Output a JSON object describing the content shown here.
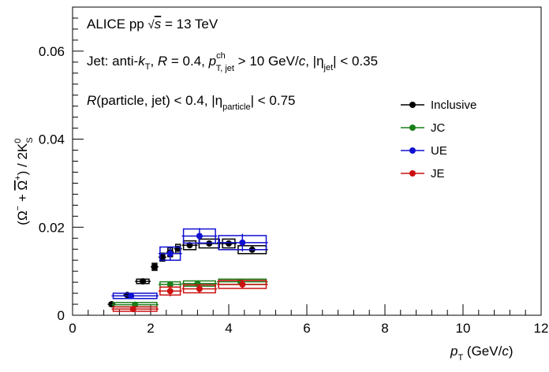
{
  "chart_data": {
    "type": "scatter",
    "ylabel": "(Ω⁻ + Ω̄⁺) / 2K⁰S",
    "xlabel": "pT (GeV/c)",
    "xlim": [
      0,
      12
    ],
    "ylim": [
      0,
      0.07
    ],
    "grid": false,
    "legend_position": "right",
    "x_tick_labels": [
      "0",
      "2",
      "4",
      "6",
      "8",
      "10",
      "12"
    ],
    "y_tick_labels": [
      "0",
      "0.02",
      "0.04",
      "0.06"
    ],
    "annotations": {
      "line1": "ALICE pp √s = 13 TeV",
      "line2": "Jet: anti-kT, R = 0.4, pch T, jet > 10 GeV/c, |ηjet| < 0.35",
      "line3": "R(particle, jet) < 0.4, |ηparticle| < 0.75"
    },
    "series": [
      {
        "name": "Inclusive",
        "color": "#000000",
        "points": [
          {
            "x": 1.0,
            "xlo": 0.9,
            "xhi": 1.1,
            "y": 0.0025,
            "ey": 0.0002,
            "syh": 0.0004
          },
          {
            "x": 1.4,
            "xlo": 1.3,
            "xhi": 1.5,
            "y": 0.0046,
            "ey": 0.0002,
            "syh": 0.0003
          },
          {
            "x": 1.8,
            "xlo": 1.6,
            "xhi": 2.0,
            "y": 0.0077,
            "ey": 0.0003,
            "syh": 0.0005
          },
          {
            "x": 2.1,
            "xlo": 2.0,
            "xhi": 2.2,
            "y": 0.011,
            "ey": 0.0005,
            "syh": 0.0008
          },
          {
            "x": 2.3,
            "xlo": 2.2,
            "xhi": 2.4,
            "y": 0.0132,
            "ey": 0.0005,
            "syh": 0.0009
          },
          {
            "x": 2.5,
            "xlo": 2.4,
            "xhi": 2.6,
            "y": 0.0143,
            "ey": 0.0005,
            "syh": 0.001
          },
          {
            "x": 2.7,
            "xlo": 2.6,
            "xhi": 2.8,
            "y": 0.0151,
            "ey": 0.0005,
            "syh": 0.001
          },
          {
            "x": 3.0,
            "xlo": 2.8,
            "xhi": 3.2,
            "y": 0.0159,
            "ey": 0.0005,
            "syh": 0.001
          },
          {
            "x": 3.5,
            "xlo": 3.2,
            "xhi": 3.8,
            "y": 0.0163,
            "ey": 0.0006,
            "syh": 0.001
          },
          {
            "x": 4.0,
            "xlo": 3.8,
            "xhi": 4.2,
            "y": 0.0163,
            "ey": 0.0006,
            "syh": 0.001
          },
          {
            "x": 4.6,
            "xlo": 4.2,
            "xhi": 5.0,
            "y": 0.0149,
            "ey": 0.0007,
            "syh": 0.0009
          }
        ]
      },
      {
        "name": "JC",
        "color": "#1a7f1a",
        "points": [
          {
            "x": 1.6,
            "xlo": 1.0,
            "xhi": 2.2,
            "y": 0.0024,
            "ey": 0.0003,
            "syh": 0.0005
          },
          {
            "x": 2.5,
            "xlo": 2.2,
            "xhi": 2.8,
            "y": 0.007,
            "ey": 0.0004,
            "syh": 0.0006
          },
          {
            "x": 3.2,
            "xlo": 2.8,
            "xhi": 3.7,
            "y": 0.0072,
            "ey": 0.0004,
            "syh": 0.0006
          },
          {
            "x": 4.3,
            "xlo": 3.7,
            "xhi": 5.0,
            "y": 0.0076,
            "ey": 0.0005,
            "syh": 0.0006
          }
        ]
      },
      {
        "name": "UE",
        "color": "#1010d0",
        "points": [
          {
            "x": 1.5,
            "xlo": 1.0,
            "xhi": 2.2,
            "y": 0.0044,
            "ey": 0.0005,
            "syh": 0.0006
          },
          {
            "x": 2.5,
            "xlo": 2.2,
            "xhi": 2.8,
            "y": 0.014,
            "ey": 0.0015,
            "syh": 0.0015
          },
          {
            "x": 3.25,
            "xlo": 2.8,
            "xhi": 3.7,
            "y": 0.018,
            "ey": 0.0018,
            "syh": 0.0016
          },
          {
            "x": 4.35,
            "xlo": 3.7,
            "xhi": 5.0,
            "y": 0.0165,
            "ey": 0.002,
            "syh": 0.0016
          }
        ]
      },
      {
        "name": "JE",
        "color": "#cc1111",
        "points": [
          {
            "x": 1.55,
            "xlo": 1.0,
            "xhi": 2.2,
            "y": 0.0014,
            "ey": 0.0004,
            "syh": 0.0005
          },
          {
            "x": 2.5,
            "xlo": 2.2,
            "xhi": 2.8,
            "y": 0.0055,
            "ey": 0.0012,
            "syh": 0.0009
          },
          {
            "x": 3.25,
            "xlo": 2.8,
            "xhi": 3.7,
            "y": 0.006,
            "ey": 0.001,
            "syh": 0.0009
          },
          {
            "x": 4.35,
            "xlo": 3.7,
            "xhi": 5.0,
            "y": 0.007,
            "ey": 0.001,
            "syh": 0.0009
          }
        ]
      }
    ]
  }
}
